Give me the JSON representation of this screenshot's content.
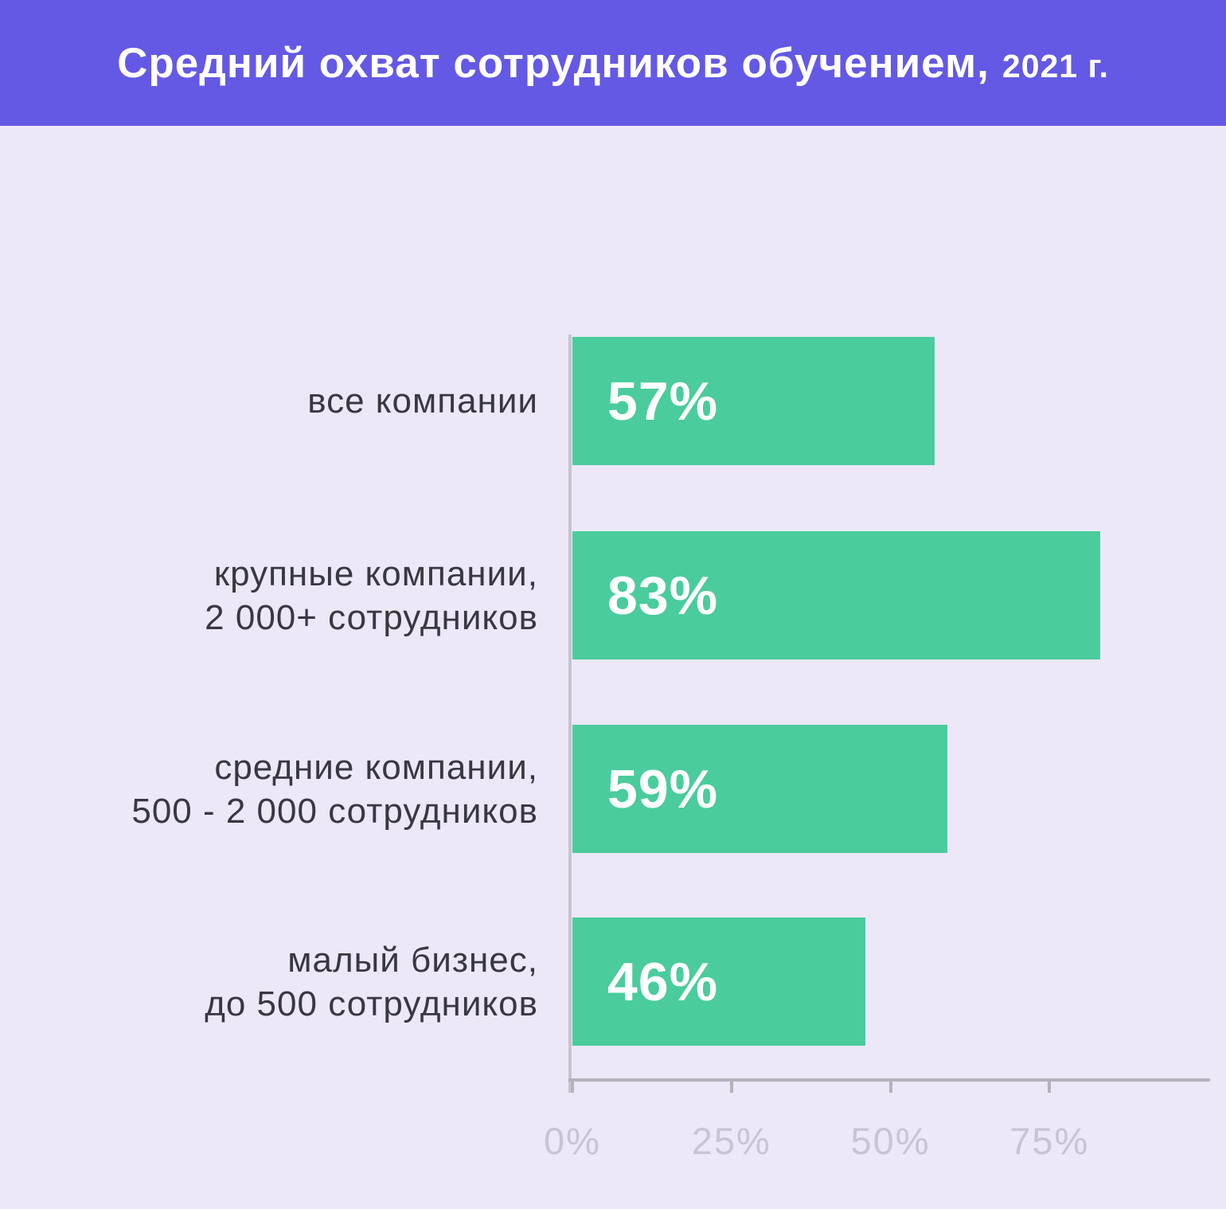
{
  "header": {
    "title_main": "Средний охват сотрудников обучением,",
    "title_year": "2021 г."
  },
  "chart_data": {
    "type": "bar",
    "orientation": "horizontal",
    "title": "Средний охват сотрудников обучением, 2021 г.",
    "categories": [
      "все компании",
      "крупные компании,\n2 000+ сотрудников",
      "средние компании,\n500 - 2 000 сотрудников",
      "малый бизнес,\nдо 500 сотрудников"
    ],
    "values": [
      57,
      83,
      59,
      46
    ],
    "value_labels": [
      "57%",
      "83%",
      "59%",
      "46%"
    ],
    "x_ticks": [
      "0%",
      "25%",
      "50%",
      "75%"
    ],
    "x_tick_positions": [
      0,
      25,
      50,
      75
    ],
    "xlim": [
      0,
      100
    ],
    "xlabel": "",
    "ylabel": "",
    "grid": false,
    "legend": false
  },
  "colors": {
    "banner": "#6459e4",
    "background": "#ece8f8",
    "bar": "#4acc9c",
    "bar_value_text": "#ffffff",
    "category_text": "#3a3744",
    "axis": "#b4b2bb",
    "tick_label": "#c8c4d4"
  }
}
